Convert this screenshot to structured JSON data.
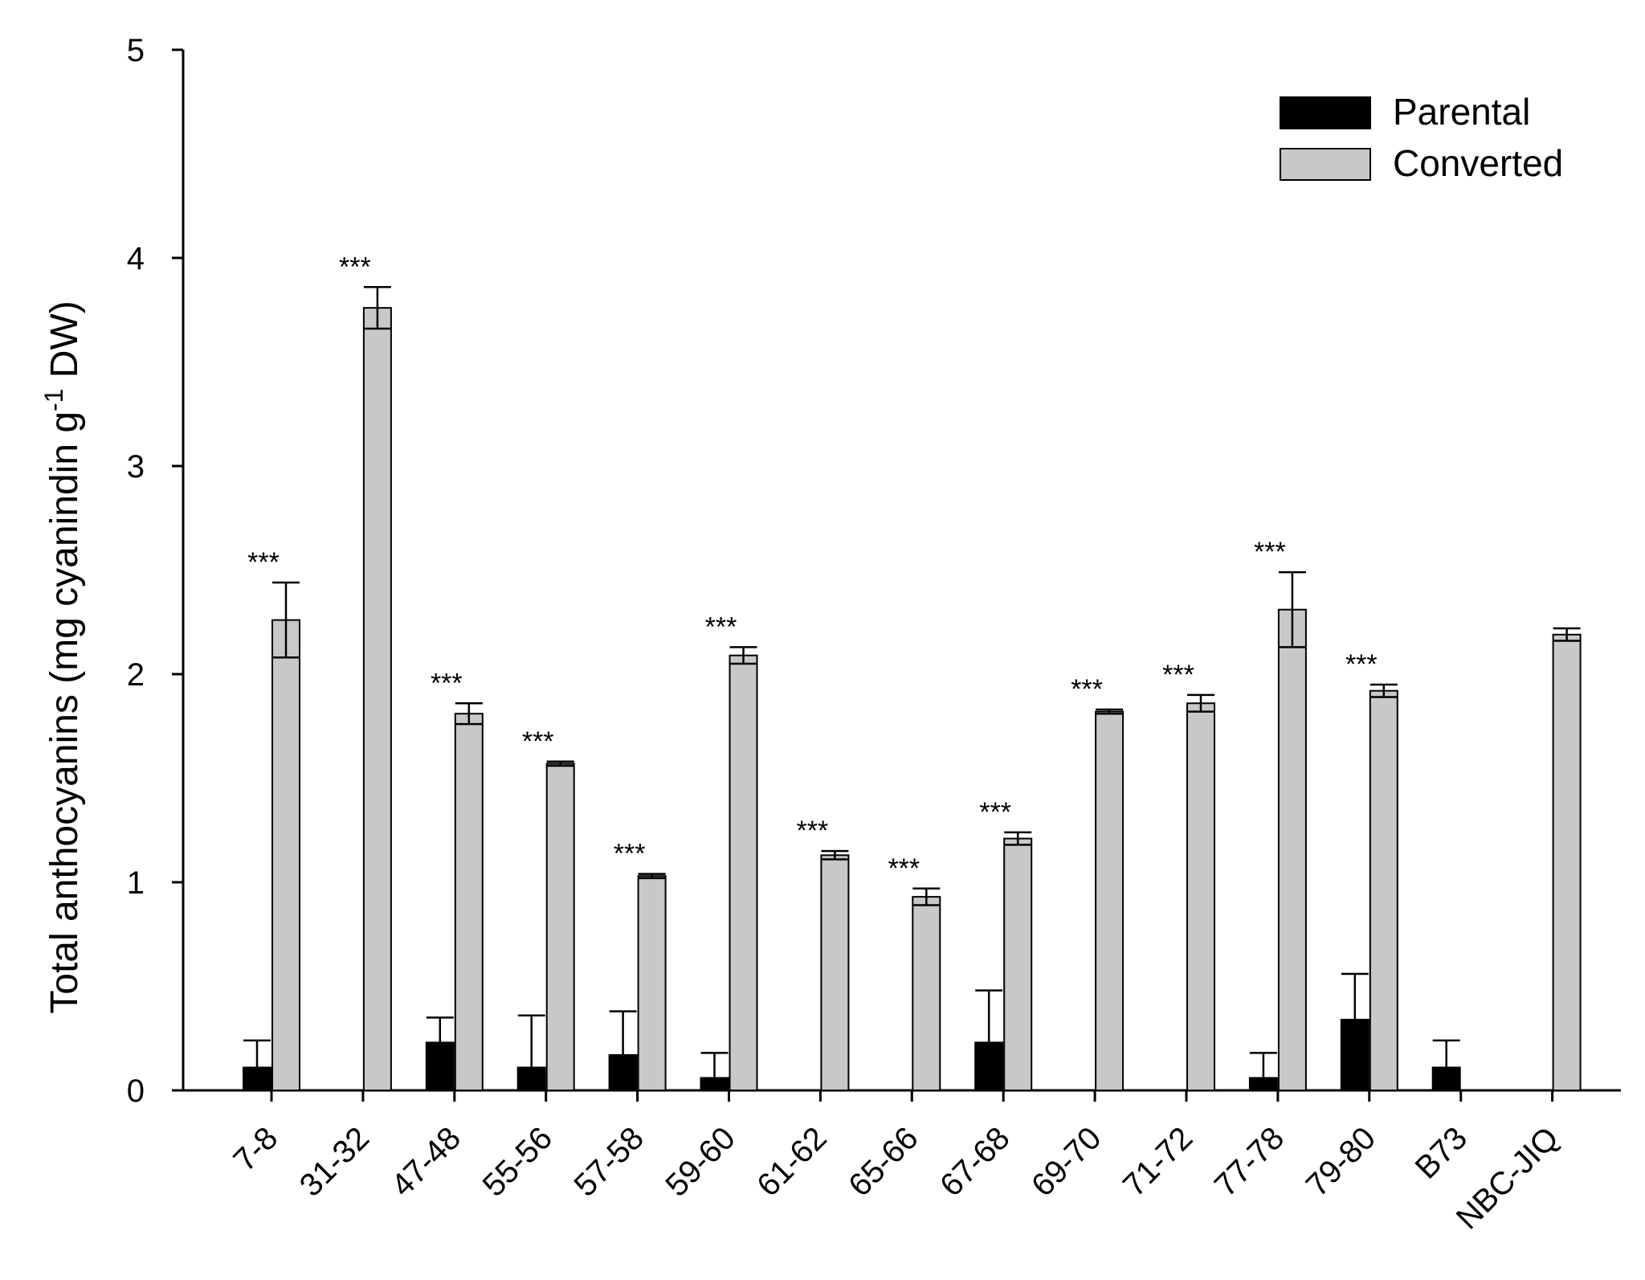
{
  "chart_data": {
    "type": "bar",
    "title": "",
    "xlabel": "",
    "ylabel": {
      "main": "Total anthocyanins (mg cyanindin g",
      "sup": "-1",
      "tail": " DW)"
    },
    "ylim": [
      0,
      5
    ],
    "yticks": [
      "0",
      "1",
      "2",
      "3",
      "4",
      "5"
    ],
    "legend_position": "top-right",
    "grid": false,
    "categories": [
      "7-8",
      "31-32",
      "47-48",
      "55-56",
      "57-58",
      "59-60",
      "61-62",
      "65-66",
      "67-68",
      "69-70",
      "71-72",
      "77-78",
      "79-80",
      "B73",
      "NBC-JIQ"
    ],
    "series": [
      {
        "name": "Parental",
        "color": "#000000",
        "values": [
          0.11,
          null,
          0.23,
          0.11,
          0.17,
          0.06,
          null,
          null,
          0.23,
          null,
          null,
          0.06,
          0.34,
          0.11,
          null
        ],
        "errors": [
          0.13,
          null,
          0.12,
          0.25,
          0.21,
          0.12,
          null,
          null,
          0.25,
          null,
          null,
          0.12,
          0.22,
          0.13,
          null
        ]
      },
      {
        "name": "Converted",
        "color": "#c8c8c8",
        "values": [
          2.26,
          3.76,
          1.81,
          1.57,
          1.03,
          2.09,
          1.13,
          0.93,
          1.21,
          1.82,
          1.86,
          2.31,
          1.92,
          null,
          2.19
        ],
        "errors": [
          0.18,
          0.1,
          0.05,
          0.01,
          0.01,
          0.04,
          0.02,
          0.04,
          0.03,
          0.01,
          0.04,
          0.18,
          0.03,
          null,
          0.03
        ]
      }
    ],
    "significance": [
      "***",
      "***",
      "***",
      "***",
      "***",
      "***",
      "***",
      "***",
      "***",
      "***",
      "***",
      "***",
      "***",
      "",
      ""
    ]
  }
}
